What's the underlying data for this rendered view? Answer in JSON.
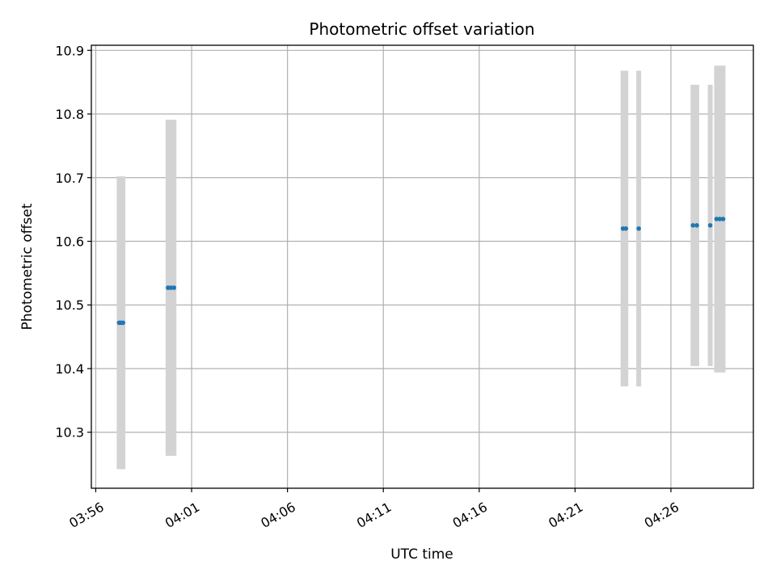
{
  "chart_data": {
    "type": "scatter",
    "title": "Photometric offset variation",
    "xlabel": "UTC time",
    "ylabel": "Photometric offset",
    "x_ticks": [
      "03:56",
      "04:01",
      "04:06",
      "04:11",
      "04:16",
      "04:21",
      "04:26"
    ],
    "x_tick_minutes": [
      236,
      241,
      246,
      251,
      256,
      261,
      266
    ],
    "xlim_minutes": [
      235.77,
      270.3
    ],
    "y_ticks": [
      "10.3",
      "10.4",
      "10.5",
      "10.6",
      "10.7",
      "10.8",
      "10.9"
    ],
    "y_tick_values": [
      10.3,
      10.4,
      10.5,
      10.6,
      10.7,
      10.8,
      10.9
    ],
    "ylim": [
      10.212,
      10.908
    ],
    "grid": true,
    "colors": {
      "point": "#1f77b4",
      "errorbar": "#d3d3d3",
      "grid": "#b0b0b0"
    },
    "points": [
      {
        "x_min": 237.22,
        "y": 10.472,
        "err": 0.23
      },
      {
        "x_min": 237.32,
        "y": 10.472,
        "err": 0.23
      },
      {
        "x_min": 237.42,
        "y": 10.472,
        "err": 0.23
      },
      {
        "x_min": 239.77,
        "y": 10.527,
        "err": 0.264
      },
      {
        "x_min": 239.92,
        "y": 10.527,
        "err": 0.264
      },
      {
        "x_min": 240.08,
        "y": 10.527,
        "err": 0.264
      },
      {
        "x_min": 263.5,
        "y": 10.62,
        "err": 0.248
      },
      {
        "x_min": 263.65,
        "y": 10.62,
        "err": 0.248
      },
      {
        "x_min": 264.32,
        "y": 10.62,
        "err": 0.248
      },
      {
        "x_min": 267.15,
        "y": 10.625,
        "err": 0.221
      },
      {
        "x_min": 267.35,
        "y": 10.625,
        "err": 0.221
      },
      {
        "x_min": 268.05,
        "y": 10.625,
        "err": 0.221
      },
      {
        "x_min": 268.38,
        "y": 10.635,
        "err": 0.241
      },
      {
        "x_min": 268.55,
        "y": 10.635,
        "err": 0.241
      },
      {
        "x_min": 268.72,
        "y": 10.635,
        "err": 0.241
      }
    ]
  }
}
